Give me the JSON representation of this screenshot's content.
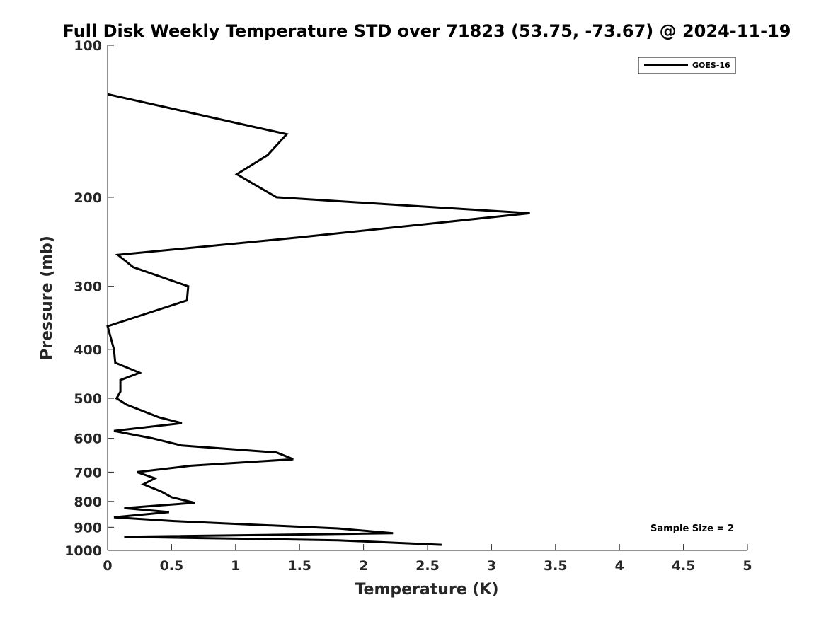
{
  "chart_data": {
    "type": "line",
    "title": "Full Disk Weekly Temperature STD over 71823 (53.75, -73.67) @ 2024-11-19",
    "xlabel": "Temperature (K)",
    "ylabel": "Pressure (mb)",
    "xlim": [
      0,
      5
    ],
    "ylim": [
      100,
      1000
    ],
    "y_scale": "log",
    "y_reversed": true,
    "x_ticks": [
      "0",
      "0.5",
      "1",
      "1.5",
      "2",
      "2.5",
      "3",
      "3.5",
      "4",
      "4.5",
      "5"
    ],
    "y_ticks": [
      "100",
      "200",
      "300",
      "400",
      "500",
      "600",
      "700",
      "800",
      "900",
      "1000"
    ],
    "grid": false,
    "legend_position": "top-right",
    "annotation": "Sample Size = 2",
    "series": [
      {
        "name": "GOES-16",
        "color": "#000000",
        "points": [
          [
            0.0,
            125
          ],
          [
            1.4,
            150
          ],
          [
            1.25,
            165
          ],
          [
            1.01,
            180
          ],
          [
            1.32,
            200
          ],
          [
            3.3,
            215
          ],
          [
            1.5,
            240
          ],
          [
            0.08,
            260
          ],
          [
            0.2,
            275
          ],
          [
            0.63,
            300
          ],
          [
            0.62,
            320
          ],
          [
            0.3,
            340
          ],
          [
            0.0,
            360
          ],
          [
            0.05,
            400
          ],
          [
            0.06,
            425
          ],
          [
            0.25,
            445
          ],
          [
            0.1,
            460
          ],
          [
            0.1,
            485
          ],
          [
            0.07,
            500
          ],
          [
            0.15,
            515
          ],
          [
            0.4,
            545
          ],
          [
            0.58,
            560
          ],
          [
            0.05,
            580
          ],
          [
            0.35,
            600
          ],
          [
            0.58,
            620
          ],
          [
            1.32,
            640
          ],
          [
            1.45,
            660
          ],
          [
            0.65,
            680
          ],
          [
            0.23,
            700
          ],
          [
            0.37,
            720
          ],
          [
            0.28,
            740
          ],
          [
            0.42,
            765
          ],
          [
            0.5,
            785
          ],
          [
            0.68,
            805
          ],
          [
            0.13,
            825
          ],
          [
            0.48,
            840
          ],
          [
            0.05,
            860
          ],
          [
            0.52,
            875
          ],
          [
            1.8,
            905
          ],
          [
            2.23,
            925
          ],
          [
            0.13,
            940
          ],
          [
            1.8,
            955
          ],
          [
            2.61,
            975
          ]
        ]
      }
    ]
  }
}
